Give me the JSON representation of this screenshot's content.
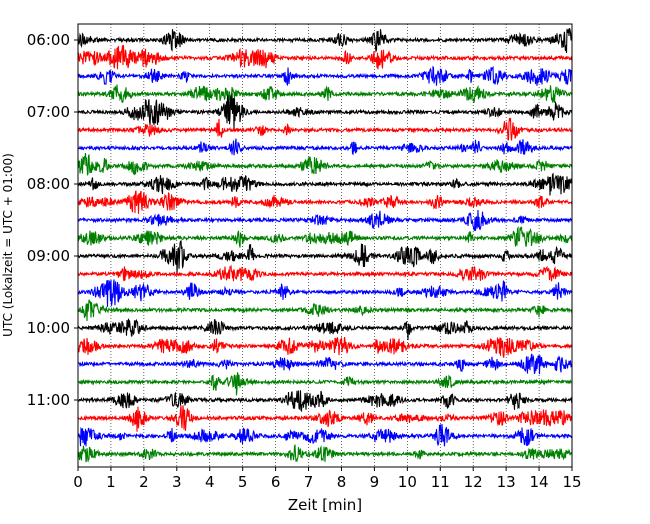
{
  "chart_data": {
    "type": "line",
    "title": "",
    "xlabel": "Zeit  [min]",
    "ylabel": "UTC (Lokalzeit = UTC + 01:00)",
    "xlim": [
      0,
      15
    ],
    "x_ticks": [
      "0",
      "1",
      "2",
      "3",
      "4",
      "5",
      "6",
      "7",
      "8",
      "9",
      "10",
      "11",
      "12",
      "13",
      "14",
      "15"
    ],
    "y_ticks": [
      "06:00",
      "07:00",
      "08:00",
      "09:00",
      "10:00",
      "11:00"
    ],
    "start_time": "06:00",
    "trace_interval_min": 15,
    "trace_count": 24,
    "trace_colors": [
      "#000000",
      "#ff0000",
      "#0000ff",
      "#008000"
    ],
    "grid": {
      "vertical": true,
      "style": "dotted"
    },
    "series_description": "seismogram helicorder: each row is one 15-minute trace, colors cycle black, red, blue, green"
  }
}
